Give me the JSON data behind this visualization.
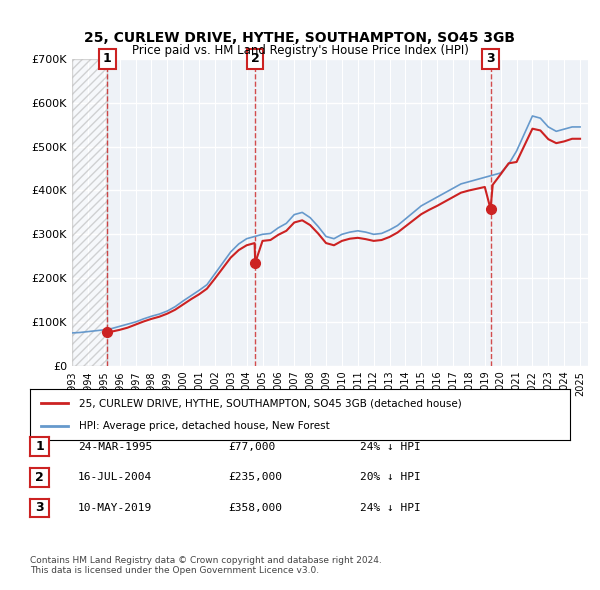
{
  "title": "25, CURLEW DRIVE, HYTHE, SOUTHAMPTON, SO45 3GB",
  "subtitle": "Price paid vs. HM Land Registry's House Price Index (HPI)",
  "ylabel_ticks": [
    "£0",
    "£100K",
    "£200K",
    "£300K",
    "£400K",
    "£500K",
    "£600K",
    "£700K"
  ],
  "ytick_values": [
    0,
    100000,
    200000,
    300000,
    400000,
    500000,
    600000,
    700000
  ],
  "ylim": [
    0,
    700000
  ],
  "xlim_start": 1993.0,
  "xlim_end": 2025.5,
  "sale_dates": [
    1995.23,
    2004.54,
    2019.36
  ],
  "sale_prices": [
    77000,
    235000,
    358000
  ],
  "sale_labels": [
    "1",
    "2",
    "3"
  ],
  "hpi_color": "#6699cc",
  "price_color": "#cc2222",
  "hatch_end": 1995.23,
  "legend_line1": "25, CURLEW DRIVE, HYTHE, SOUTHAMPTON, SO45 3GB (detached house)",
  "legend_line2": "HPI: Average price, detached house, New Forest",
  "table_data": [
    [
      "1",
      "24-MAR-1995",
      "£77,000",
      "24% ↓ HPI"
    ],
    [
      "2",
      "16-JUL-2004",
      "£235,000",
      "20% ↓ HPI"
    ],
    [
      "3",
      "10-MAY-2019",
      "£358,000",
      "24% ↓ HPI"
    ]
  ],
  "footer": "Contains HM Land Registry data © Crown copyright and database right 2024.\nThis data is licensed under the Open Government Licence v3.0.",
  "bg_color": "#f0f4f8",
  "plot_bg": "#eef2f7",
  "hpi_years": [
    1993,
    1993.5,
    1994,
    1994.5,
    1995,
    1995.5,
    1996,
    1996.5,
    1997,
    1997.5,
    1998,
    1998.5,
    1999,
    1999.5,
    2000,
    2000.5,
    2001,
    2001.5,
    2002,
    2002.5,
    2003,
    2003.5,
    2004,
    2004.5,
    2005,
    2005.5,
    2006,
    2006.5,
    2007,
    2007.5,
    2008,
    2008.5,
    2009,
    2009.5,
    2010,
    2010.5,
    2011,
    2011.5,
    2012,
    2012.5,
    2013,
    2013.5,
    2014,
    2014.5,
    2015,
    2015.5,
    2016,
    2016.5,
    2017,
    2017.5,
    2018,
    2018.5,
    2019,
    2019.5,
    2020,
    2020.5,
    2021,
    2021.5,
    2022,
    2022.5,
    2023,
    2023.5,
    2024,
    2024.5,
    2025
  ],
  "hpi_values": [
    75000,
    76000,
    78000,
    80000,
    82000,
    85000,
    90000,
    95000,
    100000,
    107000,
    113000,
    118000,
    125000,
    135000,
    148000,
    160000,
    172000,
    185000,
    210000,
    235000,
    260000,
    278000,
    290000,
    295000,
    300000,
    302000,
    315000,
    325000,
    345000,
    350000,
    338000,
    318000,
    295000,
    290000,
    300000,
    305000,
    308000,
    305000,
    300000,
    302000,
    310000,
    320000,
    335000,
    350000,
    365000,
    375000,
    385000,
    395000,
    405000,
    415000,
    420000,
    425000,
    430000,
    435000,
    440000,
    460000,
    490000,
    530000,
    570000,
    565000,
    545000,
    535000,
    540000,
    545000,
    545000
  ],
  "price_years": [
    1995.23,
    1995.5,
    1996,
    1996.5,
    1997,
    1997.5,
    1998,
    1998.5,
    1999,
    1999.5,
    2000,
    2000.5,
    2001,
    2001.5,
    2002,
    2002.5,
    2003,
    2003.5,
    2004,
    2004.5,
    2004.54,
    2005,
    2005.5,
    2006,
    2006.5,
    2007,
    2007.5,
    2008,
    2008.5,
    2009,
    2009.5,
    2010,
    2010.5,
    2011,
    2011.5,
    2012,
    2012.5,
    2013,
    2013.5,
    2014,
    2014.5,
    2015,
    2015.5,
    2016,
    2016.5,
    2017,
    2017.5,
    2018,
    2018.5,
    2019,
    2019.36,
    2019.5,
    2020,
    2020.5,
    2021,
    2021.5,
    2022,
    2022.5,
    2023,
    2023.5,
    2024,
    2024.5,
    2025
  ],
  "price_values": [
    77000,
    78000,
    82000,
    87000,
    94000,
    101000,
    107000,
    112000,
    119000,
    128000,
    140000,
    152000,
    163000,
    176000,
    199000,
    223000,
    247000,
    264000,
    275000,
    280000,
    235000,
    285000,
    287000,
    299000,
    308000,
    327000,
    332000,
    321000,
    302000,
    280000,
    275000,
    285000,
    290000,
    292000,
    289000,
    285000,
    287000,
    294000,
    304000,
    318000,
    332000,
    346000,
    356000,
    365000,
    375000,
    385000,
    395000,
    400000,
    404000,
    408000,
    358000,
    413000,
    437000,
    462000,
    465000,
    503000,
    541000,
    537000,
    517000,
    508000,
    512000,
    518000,
    518000
  ]
}
